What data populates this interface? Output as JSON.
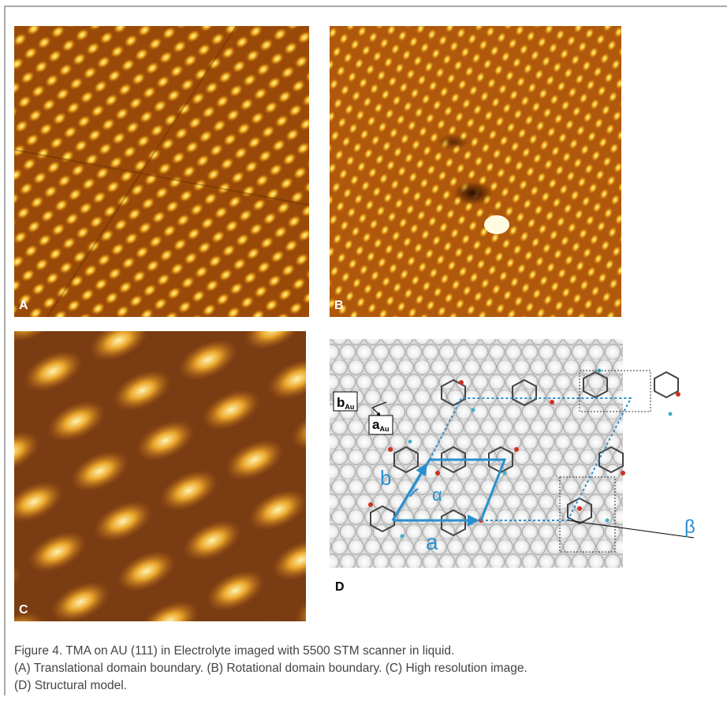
{
  "panels": [
    {
      "label": "A"
    },
    {
      "label": "B"
    },
    {
      "label": "C"
    },
    {
      "label": "D"
    }
  ],
  "model": {
    "b_au": {
      "main": "b",
      "sub": "Au"
    },
    "a_au": {
      "main": "a",
      "sub": "Au"
    },
    "vector_b": "b",
    "vector_a": "a",
    "angle_alpha": "α",
    "angle_beta": "β"
  },
  "caption": [
    "Figure 4. TMA on AU (111) in Electrolyte imaged with 5500 STM scanner in liquid.",
    "(A) Translational domain boundary. (B) Rotational domain boundary. (C) High resolution image.",
    "(D) Structural model."
  ]
}
